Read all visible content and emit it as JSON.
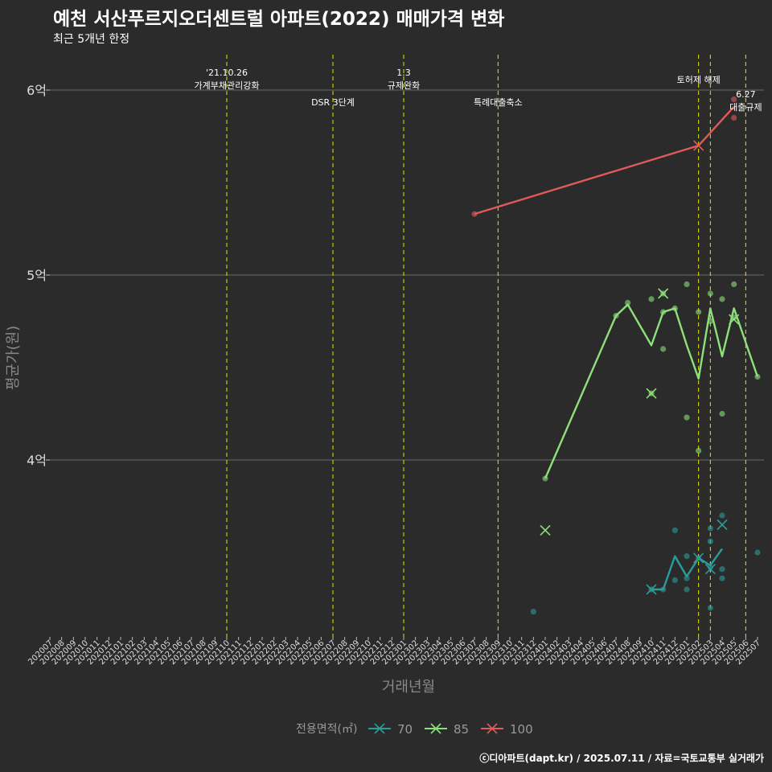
{
  "title": "예천 서산푸르지오더센트럴 아파트(2022) 매매가격 변화",
  "subtitle": "최근 5개년 한정",
  "caption": "ⓒ디아파트(dapt.kr) / 2025.07.11 / 자료=국토교통부 실거래가",
  "colors": {
    "background": "#2b2b2b",
    "grid": "#6a6a6a",
    "vline": "#e6e600",
    "s70": "#2a9d9a",
    "s85": "#8ee07a",
    "s100": "#e05a5a",
    "axis_text": "#dddddd",
    "axis_title": "#888888"
  },
  "chart_data": {
    "type": "line",
    "xlabel": "거래년월",
    "ylabel": "평균가(원)",
    "ylim": [
      3.0,
      6.2
    ],
    "yticks": [
      {
        "value": 4,
        "label": "4억"
      },
      {
        "value": 5,
        "label": "5억"
      },
      {
        "value": 6,
        "label": "6억"
      }
    ],
    "categories": [
      "202007",
      "202008",
      "202009",
      "202010",
      "202011",
      "202012",
      "202101",
      "202102",
      "202103",
      "202104",
      "202105",
      "202106",
      "202107",
      "202108",
      "202109",
      "202110",
      "202111",
      "202112",
      "202201",
      "202202",
      "202203",
      "202204",
      "202205",
      "202206",
      "202207",
      "202208",
      "202209",
      "202210",
      "202211",
      "202212",
      "202301",
      "202302",
      "202303",
      "202304",
      "202305",
      "202306",
      "202307",
      "202308",
      "202309",
      "202310",
      "202311",
      "202312",
      "202401",
      "202402",
      "202403",
      "202404",
      "202405",
      "202406",
      "202407",
      "202408",
      "202409",
      "202410",
      "202411",
      "202412",
      "202501",
      "202502",
      "202503",
      "202504",
      "202505",
      "202506",
      "202507"
    ],
    "legend_title": "전용면적(㎡)",
    "legend_position": "bottom",
    "series": [
      {
        "name": "70",
        "color": "#2a9d9a",
        "line": [
          [
            "202410",
            3.3
          ],
          [
            "202411",
            3.3
          ],
          [
            "202412",
            3.48
          ],
          [
            "202501",
            3.37
          ],
          [
            "202502",
            3.47
          ],
          [
            "202503",
            3.43
          ],
          [
            "202504",
            3.52
          ]
        ],
        "points": [
          [
            "202312",
            3.18
          ],
          [
            "202410",
            3.3
          ],
          [
            "202411",
            3.3
          ],
          [
            "202412",
            3.35
          ],
          [
            "202412",
            3.62
          ],
          [
            "202501",
            3.3
          ],
          [
            "202501",
            3.36
          ],
          [
            "202501",
            3.48
          ],
          [
            "202502",
            3.47
          ],
          [
            "202503",
            3.2
          ],
          [
            "202503",
            3.42
          ],
          [
            "202503",
            3.56
          ],
          [
            "202503",
            3.63
          ],
          [
            "202504",
            3.36
          ],
          [
            "202504",
            3.41
          ],
          [
            "202504",
            3.7
          ],
          [
            "202507",
            3.5
          ]
        ],
        "crosses": [
          [
            "202410",
            3.3
          ],
          [
            "202502",
            3.47
          ],
          [
            "202503",
            3.41
          ],
          [
            "202504",
            3.65
          ]
        ]
      },
      {
        "name": "85",
        "color": "#8ee07a",
        "line": [
          [
            "202401",
            3.9
          ],
          [
            "202407",
            4.78
          ],
          [
            "202408",
            4.84
          ],
          [
            "202410",
            4.62
          ],
          [
            "202411",
            4.8
          ],
          [
            "202412",
            4.82
          ],
          [
            "202501",
            4.62
          ],
          [
            "202502",
            4.44
          ],
          [
            "202503",
            4.82
          ],
          [
            "202504",
            4.56
          ],
          [
            "202505",
            4.82
          ],
          [
            "202507",
            4.45
          ]
        ],
        "points": [
          [
            "202401",
            3.9
          ],
          [
            "202407",
            4.78
          ],
          [
            "202408",
            4.85
          ],
          [
            "202410",
            4.36
          ],
          [
            "202410",
            4.87
          ],
          [
            "202411",
            4.6
          ],
          [
            "202411",
            4.8
          ],
          [
            "202411",
            4.9
          ],
          [
            "202412",
            4.82
          ],
          [
            "202501",
            4.23
          ],
          [
            "202501",
            4.95
          ],
          [
            "202502",
            4.05
          ],
          [
            "202502",
            4.8
          ],
          [
            "202503",
            4.75
          ],
          [
            "202503",
            4.9
          ],
          [
            "202504",
            4.25
          ],
          [
            "202504",
            4.87
          ],
          [
            "202505",
            4.77
          ],
          [
            "202505",
            4.95
          ],
          [
            "202507",
            4.45
          ]
        ],
        "crosses": [
          [
            "202401",
            3.62
          ],
          [
            "202410",
            4.36
          ],
          [
            "202411",
            4.9
          ],
          [
            "202505",
            4.76
          ]
        ]
      },
      {
        "name": "100",
        "color": "#e05a5a",
        "line": [
          [
            "202307",
            5.33
          ],
          [
            "202502",
            5.7
          ],
          [
            "202505",
            5.91
          ]
        ],
        "points": [
          [
            "202307",
            5.33
          ],
          [
            "202505",
            5.85
          ],
          [
            "202505",
            5.95
          ]
        ],
        "crosses": [
          [
            "202502",
            5.7
          ]
        ]
      }
    ],
    "annotations": [
      {
        "at": "202110",
        "lines": [
          "'21.10.26",
          "가계부채관리강화"
        ],
        "level": "top"
      },
      {
        "at": "202207",
        "lines": [
          "DSR 3단계"
        ],
        "level": "low"
      },
      {
        "at": "202301",
        "lines": [
          "1.3",
          "규제완화"
        ],
        "level": "top"
      },
      {
        "at": "202309",
        "lines": [
          "특례대출축소"
        ],
        "level": "low"
      },
      {
        "at": "202502",
        "lines": [
          "토허제 해제"
        ],
        "level": "mid"
      },
      {
        "at": "202503",
        "lines": [],
        "level": "none"
      },
      {
        "at": "202506",
        "lines": [
          "6.27",
          "대출규제"
        ],
        "level": "right"
      }
    ]
  }
}
